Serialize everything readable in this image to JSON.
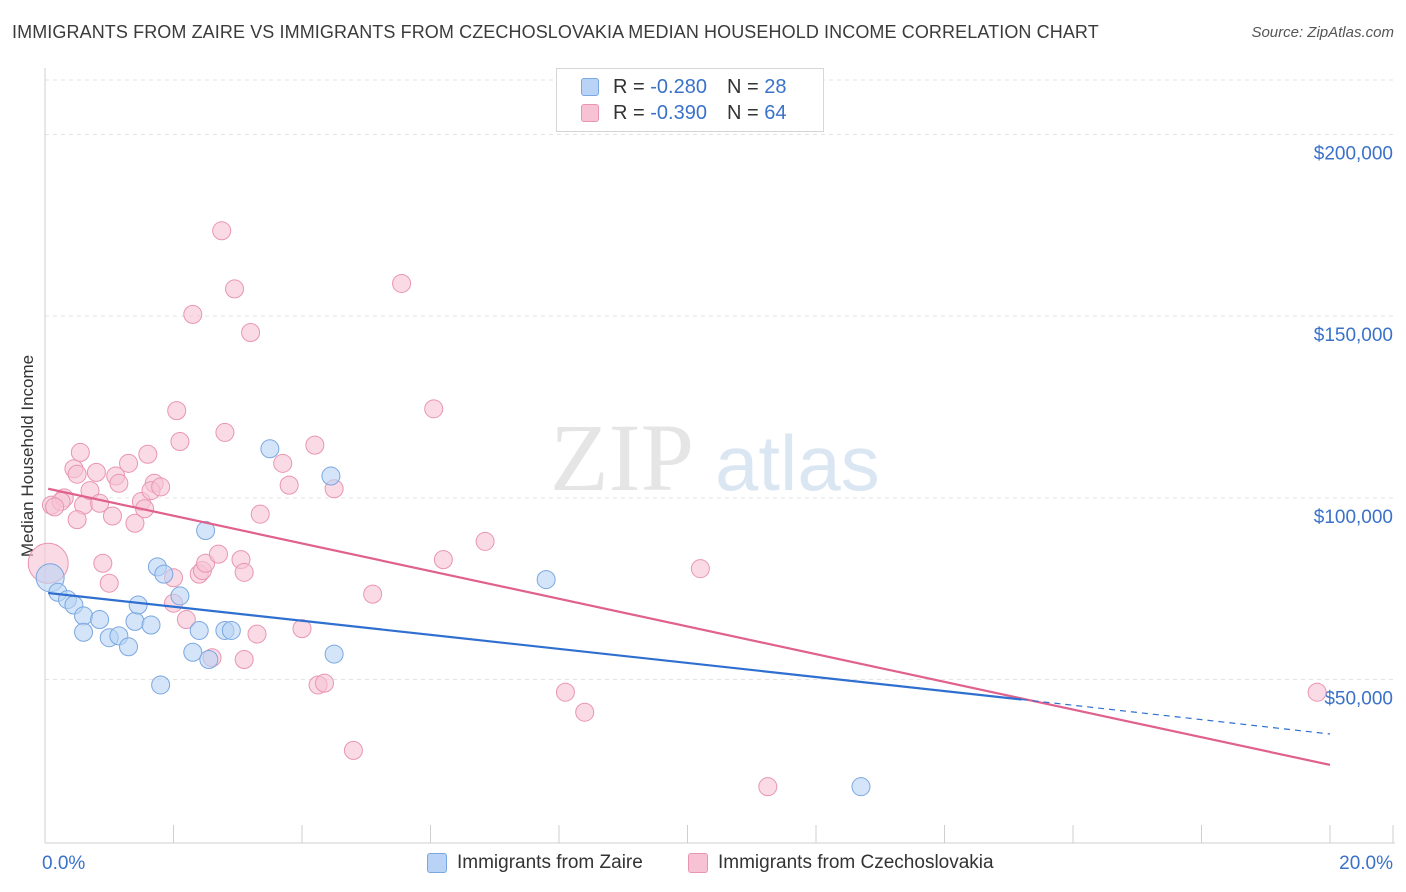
{
  "title": "IMMIGRANTS FROM ZAIRE VS IMMIGRANTS FROM CZECHOSLOVAKIA MEDIAN HOUSEHOLD INCOME CORRELATION CHART",
  "source": "Source: ZipAtlas.com",
  "colors": {
    "zaire_fill": "#b8d3f5",
    "zaire_stroke": "#7aa7e0",
    "zaire_line": "#2f6fd0",
    "czech_fill": "#f7c3d4",
    "czech_stroke": "#e995b1",
    "czech_line": "#e0608e",
    "tick_label": "#3a72c9",
    "grid": "#e3e3e3"
  },
  "legend": {
    "zaire": {
      "r_label": "R =",
      "r_value": "-0.280",
      "n_label": "N =",
      "n_value": "28"
    },
    "czech": {
      "r_label": "R =",
      "r_value": "-0.390",
      "n_label": "N =",
      "n_value": "64"
    }
  },
  "bottom_legend": {
    "zaire": "Immigrants from Zaire",
    "czech": "Immigrants from Czechoslovakia"
  },
  "watermark": {
    "zip": "ZIP",
    "atlas": "atlas"
  },
  "chart_data": {
    "type": "scatter",
    "xlabel": "",
    "ylabel": "Median Household Income",
    "xlim": [
      0,
      20
    ],
    "ylim": [
      5000,
      215000
    ],
    "x_tick_labels": [
      {
        "value": 0,
        "label": "0.0%"
      },
      {
        "value": 20,
        "label": "20.0%"
      }
    ],
    "y_ticks": [
      {
        "value": 50000,
        "label": "$50,000"
      },
      {
        "value": 100000,
        "label": "$100,000"
      },
      {
        "value": 150000,
        "label": "$150,000"
      },
      {
        "value": 200000,
        "label": "$200,000"
      }
    ],
    "series": [
      {
        "name": "Immigrants from Zaire",
        "color": "#b8d3f5",
        "points": [
          [
            0.08,
            78000
          ],
          [
            0.2,
            74000
          ],
          [
            0.35,
            72000
          ],
          [
            0.45,
            70500
          ],
          [
            0.6,
            67500
          ],
          [
            0.85,
            66500
          ],
          [
            0.6,
            63000
          ],
          [
            1.0,
            61500
          ],
          [
            1.15,
            62000
          ],
          [
            1.3,
            59000
          ],
          [
            1.4,
            66000
          ],
          [
            1.45,
            70500
          ],
          [
            1.65,
            65000
          ],
          [
            1.75,
            81000
          ],
          [
            1.85,
            79000
          ],
          [
            2.1,
            73000
          ],
          [
            2.3,
            57500
          ],
          [
            2.4,
            63500
          ],
          [
            2.55,
            55500
          ],
          [
            2.8,
            63500
          ],
          [
            2.9,
            63500
          ],
          [
            3.5,
            113500
          ],
          [
            4.45,
            106000
          ],
          [
            4.5,
            57000
          ],
          [
            7.8,
            77500
          ],
          [
            12.7,
            20500
          ],
          [
            2.5,
            91000
          ],
          [
            1.8,
            48500
          ]
        ],
        "trend": {
          "x1": 0.05,
          "y1": 73800,
          "x2": 15.2,
          "y2": 44500,
          "dash_x2": 20,
          "dash_y2": 35000
        }
      },
      {
        "name": "Immigrants from Czechoslovakia",
        "color": "#f7c3d4",
        "points": [
          [
            0.05,
            82000
          ],
          [
            0.1,
            98000
          ],
          [
            0.3,
            100000
          ],
          [
            0.25,
            99000
          ],
          [
            0.45,
            108000
          ],
          [
            0.5,
            106500
          ],
          [
            0.6,
            98000
          ],
          [
            0.5,
            94000
          ],
          [
            0.55,
            112500
          ],
          [
            0.7,
            102000
          ],
          [
            0.8,
            107000
          ],
          [
            0.85,
            98500
          ],
          [
            0.9,
            82000
          ],
          [
            1.0,
            76500
          ],
          [
            1.05,
            95000
          ],
          [
            1.1,
            106000
          ],
          [
            1.15,
            104000
          ],
          [
            1.3,
            109500
          ],
          [
            1.4,
            93000
          ],
          [
            1.5,
            99000
          ],
          [
            1.55,
            97000
          ],
          [
            1.6,
            112000
          ],
          [
            1.7,
            104000
          ],
          [
            1.65,
            102000
          ],
          [
            1.8,
            103000
          ],
          [
            2.0,
            71000
          ],
          [
            2.05,
            124000
          ],
          [
            2.1,
            115500
          ],
          [
            2.2,
            66500
          ],
          [
            2.0,
            78000
          ],
          [
            2.3,
            150500
          ],
          [
            2.4,
            79000
          ],
          [
            2.45,
            80000
          ],
          [
            2.5,
            82000
          ],
          [
            2.6,
            56000
          ],
          [
            2.7,
            84500
          ],
          [
            2.8,
            118000
          ],
          [
            2.75,
            173500
          ],
          [
            2.95,
            157500
          ],
          [
            3.05,
            83000
          ],
          [
            3.1,
            79500
          ],
          [
            3.1,
            55500
          ],
          [
            3.2,
            145500
          ],
          [
            3.3,
            62500
          ],
          [
            3.35,
            95500
          ],
          [
            3.7,
            109500
          ],
          [
            3.8,
            103500
          ],
          [
            4.0,
            64000
          ],
          [
            4.2,
            114500
          ],
          [
            4.25,
            48500
          ],
          [
            4.35,
            49000
          ],
          [
            4.5,
            102500
          ],
          [
            4.8,
            30500
          ],
          [
            5.1,
            73500
          ],
          [
            5.55,
            159000
          ],
          [
            6.05,
            124500
          ],
          [
            6.2,
            83000
          ],
          [
            6.85,
            88000
          ],
          [
            8.1,
            46500
          ],
          [
            8.4,
            41000
          ],
          [
            10.2,
            80500
          ],
          [
            11.25,
            20500
          ],
          [
            19.8,
            46500
          ],
          [
            0.15,
            97500
          ]
        ],
        "trend": {
          "x1": 0.05,
          "y1": 102500,
          "x2": 20,
          "y2": 26500
        }
      }
    ]
  }
}
